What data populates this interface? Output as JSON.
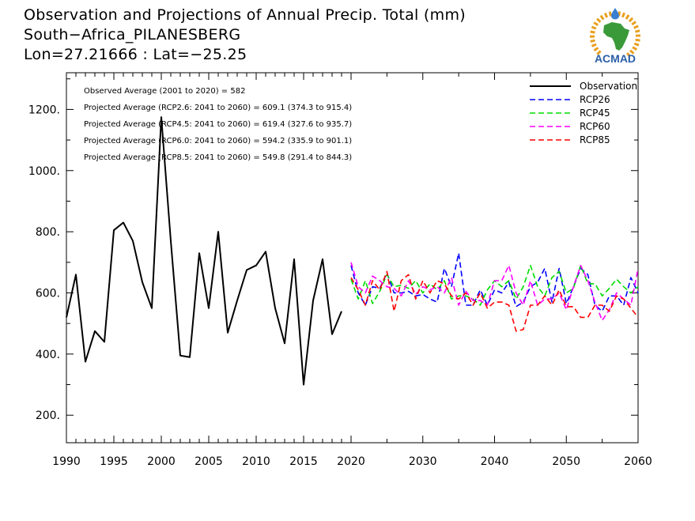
{
  "header": {
    "title_line1": "Observation and Projections of Annual Precip. Total (mm)",
    "title_line2": "South−Africa_PILANESBERG",
    "title_line3": "Lon=27.21666 : Lat=−25.25"
  },
  "logo": {
    "text": "ACMAD",
    "colors": {
      "africa": "#3a9a3a",
      "ring": "#e8a020",
      "text": "#2a5fa8",
      "drop": "#3a7fd0"
    }
  },
  "notes": [
    "Observed Average (2001 to 2020) = 582",
    "Projected Average (RCP2.6: 2041 to 2060) =  609.1 (374.3 to 915.4)",
    "Projected Average (RCP4.5: 2041 to 2060) =  619.4 (327.6 to 935.7)",
    "Projected Average (RCP6.0: 2041 to 2060) =  594.2 (335.9 to 901.1)",
    "Projected Average (RCP8.5: 2041 to 2060) =  549.8 (291.4 to 844.3)"
  ],
  "chart_data": {
    "type": "line",
    "xlim": [
      1990,
      2060
    ],
    "ylim": [
      110,
      1320
    ],
    "x_ticks": [
      1990,
      1995,
      2000,
      2005,
      2010,
      2015,
      2020,
      2030,
      2040,
      2050,
      2060
    ],
    "y_ticks": [
      200,
      400,
      600,
      800,
      1000,
      1200
    ],
    "y_tick_labels": [
      "200.",
      "400.",
      "600.",
      "800.",
      "1000.",
      "1200."
    ],
    "grid": false,
    "legend_position": "top-right",
    "series": [
      {
        "name": "Observation",
        "color": "#000000",
        "dash": "solid",
        "x": [
          1990,
          1991,
          1992,
          1993,
          1994,
          1995,
          1996,
          1997,
          1998,
          1999,
          2000,
          2001,
          2002,
          2003,
          2004,
          2005,
          2006,
          2007,
          2008,
          2009,
          2010,
          2011,
          2012,
          2013,
          2014,
          2015,
          2016,
          2017,
          2018,
          2019
        ],
        "values": [
          520,
          660,
          375,
          475,
          440,
          805,
          830,
          770,
          635,
          550,
          1175,
          770,
          395,
          390,
          730,
          550,
          800,
          470,
          575,
          675,
          690,
          735,
          550,
          435,
          710,
          300,
          575,
          710,
          465,
          540
        ]
      },
      {
        "name": "RCP26",
        "color": "#0000ff",
        "dash": "dashed",
        "x": [
          2020,
          2021,
          2022,
          2023,
          2024,
          2025,
          2026,
          2027,
          2028,
          2029,
          2030,
          2031,
          2032,
          2033,
          2034,
          2035,
          2036,
          2037,
          2038,
          2039,
          2040,
          2041,
          2042,
          2043,
          2044,
          2045,
          2046,
          2047,
          2048,
          2049,
          2050,
          2051,
          2052,
          2053,
          2054,
          2055,
          2056,
          2057,
          2058,
          2059,
          2060
        ],
        "values": [
          690,
          600,
          560,
          620,
          615,
          665,
          600,
          600,
          605,
          590,
          595,
          580,
          570,
          680,
          620,
          730,
          560,
          560,
          610,
          560,
          610,
          600,
          635,
          555,
          570,
          620,
          635,
          680,
          570,
          680,
          565,
          620,
          680,
          660,
          560,
          540,
          590,
          590,
          560,
          650,
          600
        ]
      },
      {
        "name": "RCP45",
        "color": "#00dd00",
        "dash": "dashed",
        "x": [
          2020,
          2021,
          2022,
          2023,
          2024,
          2025,
          2026,
          2027,
          2028,
          2029,
          2030,
          2031,
          2032,
          2033,
          2034,
          2035,
          2036,
          2037,
          2038,
          2039,
          2040,
          2041,
          2042,
          2043,
          2044,
          2045,
          2046,
          2047,
          2048,
          2049,
          2050,
          2051,
          2052,
          2053,
          2054,
          2055,
          2056,
          2057,
          2058,
          2059,
          2060
        ],
        "values": [
          645,
          580,
          640,
          565,
          605,
          660,
          620,
          625,
          615,
          640,
          600,
          630,
          610,
          640,
          580,
          590,
          590,
          580,
          560,
          610,
          640,
          620,
          640,
          580,
          620,
          690,
          620,
          590,
          650,
          670,
          600,
          615,
          690,
          630,
          630,
          590,
          615,
          645,
          620,
          600,
          620
        ]
      },
      {
        "name": "RCP60",
        "color": "#ff00ff",
        "dash": "dashed",
        "x": [
          2020,
          2021,
          2022,
          2023,
          2024,
          2025,
          2026,
          2027,
          2028,
          2029,
          2030,
          2031,
          2032,
          2033,
          2034,
          2035,
          2036,
          2037,
          2038,
          2039,
          2040,
          2041,
          2042,
          2043,
          2044,
          2045,
          2046,
          2047,
          2048,
          2049,
          2050,
          2051,
          2052,
          2053,
          2054,
          2055,
          2056,
          2057,
          2058,
          2059,
          2060
        ],
        "values": [
          700,
          620,
          600,
          655,
          640,
          620,
          615,
          590,
          640,
          595,
          620,
          610,
          620,
          600,
          650,
          560,
          605,
          575,
          575,
          560,
          640,
          640,
          690,
          600,
          560,
          640,
          560,
          580,
          580,
          600,
          545,
          620,
          690,
          640,
          570,
          510,
          545,
          600,
          580,
          560,
          680
        ]
      },
      {
        "name": "RCP85",
        "color": "#ff0000",
        "dash": "dashed",
        "x": [
          2020,
          2021,
          2022,
          2023,
          2024,
          2025,
          2026,
          2027,
          2028,
          2029,
          2030,
          2031,
          2032,
          2033,
          2034,
          2035,
          2036,
          2037,
          2038,
          2039,
          2040,
          2041,
          2042,
          2043,
          2044,
          2045,
          2046,
          2047,
          2048,
          2049,
          2050,
          2051,
          2052,
          2053,
          2054,
          2055,
          2056,
          2057,
          2058,
          2059,
          2060
        ],
        "values": [
          650,
          610,
          560,
          640,
          610,
          670,
          540,
          640,
          660,
          580,
          640,
          600,
          640,
          630,
          590,
          580,
          600,
          560,
          600,
          550,
          570,
          570,
          560,
          475,
          480,
          560,
          560,
          590,
          560,
          610,
          555,
          555,
          520,
          520,
          560,
          560,
          540,
          590,
          580,
          550,
          520
        ]
      }
    ]
  }
}
